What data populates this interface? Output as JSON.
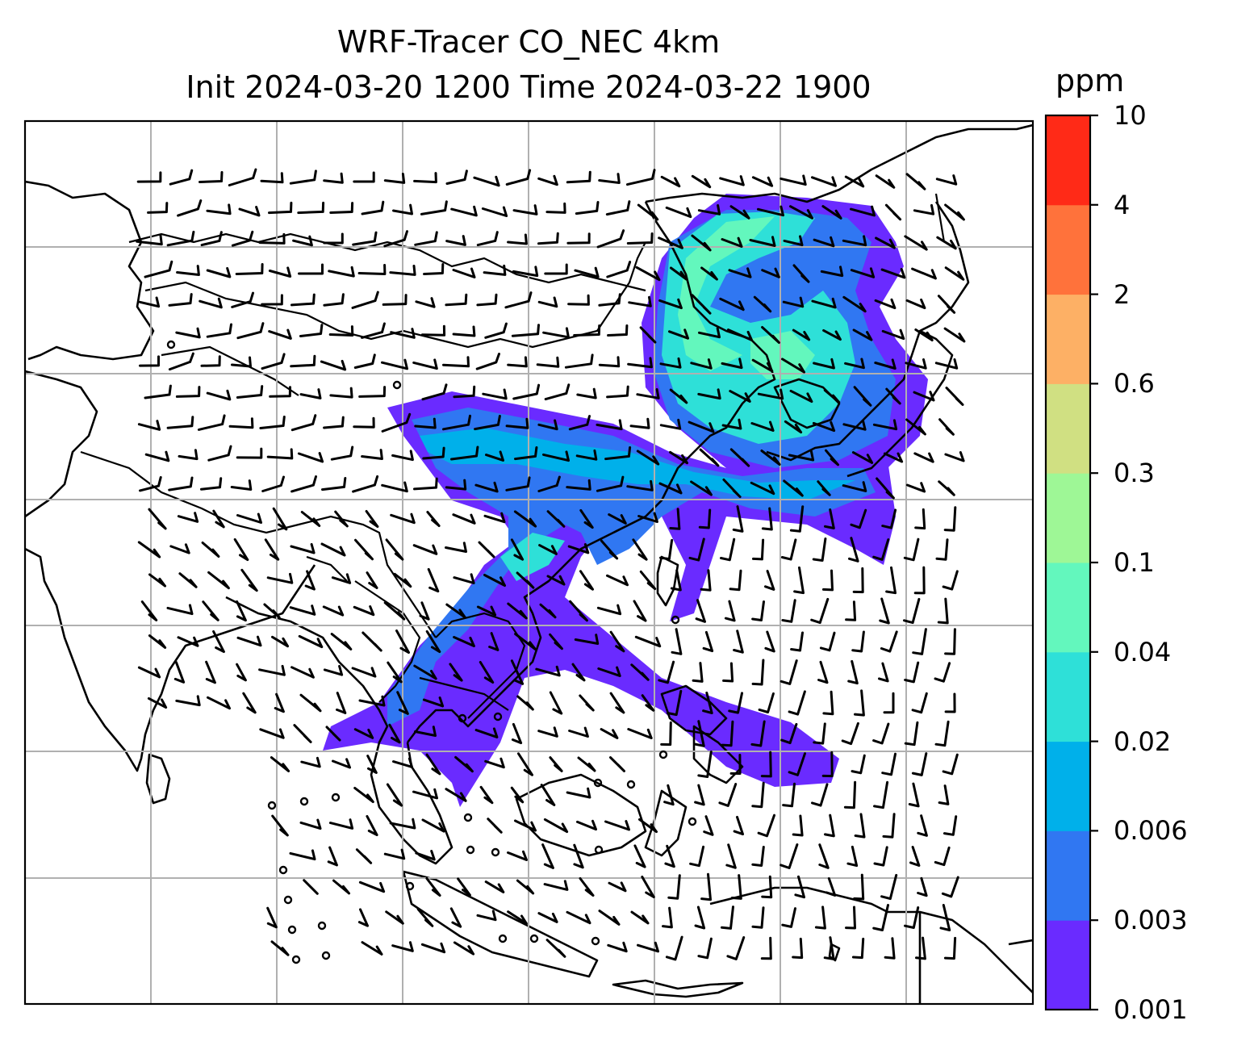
{
  "title": {
    "line1": "WRF-Tracer CO_NEC 4km",
    "line2": "Init 2024-03-20 1200 Time 2024-03-22 1900"
  },
  "colorbar": {
    "unit": "ppm",
    "ticks": [
      "0.001",
      "0.003",
      "0.006",
      "0.02",
      "0.04",
      "0.1",
      "0.3",
      "0.6",
      "2",
      "4",
      "10"
    ],
    "colors": [
      "#6a2bff",
      "#3077f2",
      "#00b0ea",
      "#2ee0d8",
      "#63f7bd",
      "#9ef796",
      "#d0e082",
      "#fdb065",
      "#ff723b",
      "#ff2a17"
    ]
  },
  "map": {
    "gridlines": true,
    "plume_colors": {
      "low": "#6a2bff",
      "mid": "#3077f2",
      "cyan": "#00b0ea",
      "teal": "#2ee0d8",
      "green": "#63f7bd"
    }
  }
}
